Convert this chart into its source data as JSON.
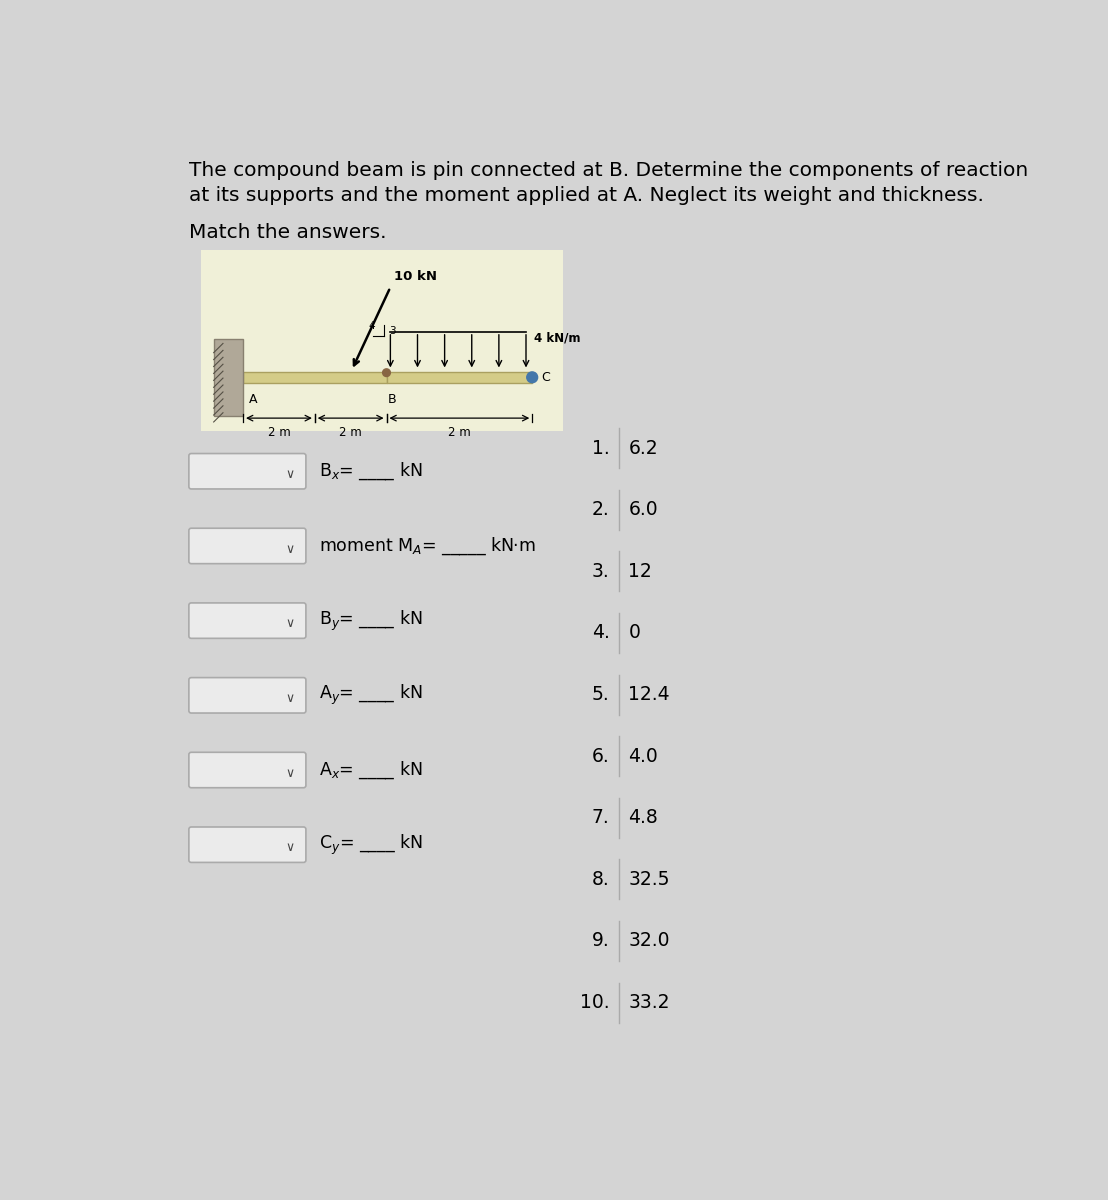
{
  "title_line1": "The compound beam is pin connected at B. Determine the components of reaction",
  "title_line2": "at its supports and the moment applied at A. Neglect its weight and thickness.",
  "subtitle": "Match the answers.",
  "bg_color": "#d4d4d4",
  "panel_bg": "#f0f0d8",
  "answer_list": [
    {
      "num": "1.",
      "val": "6.2"
    },
    {
      "num": "2.",
      "val": "6.0"
    },
    {
      "num": "3.",
      "val": "12"
    },
    {
      "num": "4.",
      "val": "0"
    },
    {
      "num": "5.",
      "val": "12.4"
    },
    {
      "num": "6.",
      "val": "4.0"
    },
    {
      "num": "7.",
      "val": "4.8"
    },
    {
      "num": "8.",
      "val": "32.5"
    },
    {
      "num": "9.",
      "val": "32.0"
    },
    {
      "num": "10.",
      "val": "33.2"
    }
  ],
  "dropdown_items": [
    {
      "label_left": "B",
      "sub": "x",
      "label_right": "= ____ kN"
    },
    {
      "label_left": "moment M",
      "sub": "A",
      "label_right": "= _____ kN·m"
    },
    {
      "label_left": "B",
      "sub": "y",
      "label_right": "= ____ kN"
    },
    {
      "label_left": "A",
      "sub": "y",
      "label_right": "= ____ kN"
    },
    {
      "label_left": "A",
      "sub": "x",
      "label_right": "= ____ kN"
    },
    {
      "label_left": "C",
      "sub": "y",
      "label_right": "= ____ kN"
    }
  ],
  "diagram": {
    "force_top": "10 kN",
    "dist_load": "4 kN/m",
    "dim_left": "2 m",
    "dim_mid": "2 m",
    "dim_right": "2 m",
    "point_A": "A",
    "point_B": "B",
    "point_C": "C",
    "slope_h": "4",
    "slope_v": "3"
  }
}
